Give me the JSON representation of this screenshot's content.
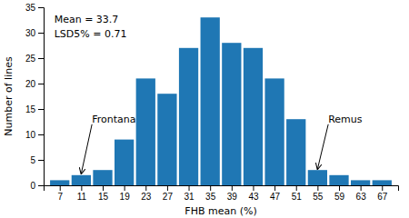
{
  "chart_data": {
    "type": "bar",
    "x": [
      7,
      11,
      15,
      19,
      23,
      27,
      31,
      35,
      39,
      43,
      47,
      51,
      55,
      59,
      63,
      67
    ],
    "values": [
      1,
      2,
      3,
      9,
      21,
      18,
      27,
      33,
      28,
      27,
      21,
      13,
      3,
      2,
      1,
      1
    ],
    "xlabel": "FHB mean (%)",
    "ylabel": "Number of lines",
    "xlim": [
      4,
      70
    ],
    "xticks": [
      7,
      11,
      15,
      19,
      23,
      27,
      31,
      35,
      39,
      43,
      47,
      51,
      55,
      59,
      63,
      67
    ],
    "ylim": [
      0,
      35
    ],
    "yticks": [
      0,
      5,
      10,
      15,
      20,
      25,
      30,
      35
    ],
    "grid": false,
    "annotations": [
      {
        "text": "Mean = 33.7"
      },
      {
        "text": "LSD5% = 0.71"
      },
      {
        "text": "Frontana",
        "x": 11,
        "y": 2.3,
        "text_x": 13,
        "text_y": 12
      },
      {
        "text": "Remus",
        "x": 55,
        "y": 3.2,
        "text_x": 57,
        "text_y": 12
      }
    ]
  }
}
